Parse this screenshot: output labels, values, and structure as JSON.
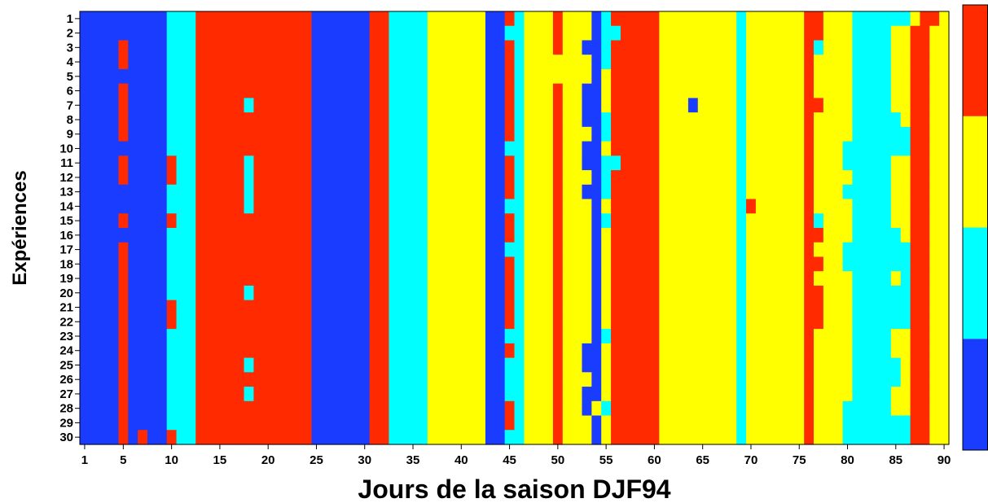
{
  "chart_data": {
    "type": "heatmap",
    "xlabel": "Jours de la saison DJF94",
    "ylabel": "Expériences",
    "x_ticks": [
      1,
      5,
      10,
      15,
      20,
      25,
      30,
      35,
      40,
      45,
      50,
      55,
      60,
      65,
      70,
      75,
      80,
      85,
      90
    ],
    "y_ticks": [
      1,
      2,
      3,
      4,
      5,
      6,
      7,
      8,
      9,
      10,
      11,
      12,
      13,
      14,
      15,
      16,
      17,
      18,
      19,
      20,
      21,
      22,
      23,
      24,
      25,
      26,
      27,
      28,
      29,
      30
    ],
    "xlim": [
      1,
      90
    ],
    "ylim": [
      1,
      30
    ],
    "colors": {
      "1": "#1a3cff",
      "2": "#00ffff",
      "3": "#ffff00",
      "4": "#ff2a00"
    },
    "colorbar_order_bottom_to_top": [
      1,
      2,
      3,
      4
    ],
    "base_column_classes": [
      1,
      1,
      1,
      1,
      1,
      1,
      1,
      1,
      1,
      2,
      2,
      2,
      4,
      4,
      4,
      4,
      4,
      4,
      4,
      4,
      4,
      4,
      4,
      4,
      1,
      1,
      1,
      1,
      1,
      1,
      4,
      4,
      2,
      2,
      2,
      2,
      3,
      3,
      3,
      3,
      3,
      3,
      1,
      1,
      4,
      2,
      3,
      3,
      3,
      4,
      3,
      3,
      3,
      1,
      2,
      4,
      4,
      4,
      4,
      4,
      3,
      3,
      3,
      3,
      3,
      3,
      3,
      3,
      2,
      3,
      3,
      3,
      3,
      3,
      3,
      4,
      4,
      3,
      3,
      2,
      2,
      2,
      2,
      2,
      2,
      2,
      4,
      4,
      3,
      3
    ],
    "variations": [
      {
        "day": 5,
        "class": 4,
        "experiences": [
          3,
          4,
          6,
          7,
          8,
          9,
          11,
          12,
          15,
          17,
          18,
          19,
          20,
          21,
          22,
          23,
          24,
          25,
          26,
          27,
          28,
          29,
          30
        ]
      },
      {
        "day": 7,
        "class": 4,
        "experiences": [
          30
        ]
      },
      {
        "day": 10,
        "class": 4,
        "experiences": [
          11,
          12,
          15,
          21,
          22,
          30
        ]
      },
      {
        "day": 18,
        "class": 2,
        "experiences": [
          7,
          11,
          12,
          13,
          14,
          20,
          25,
          27
        ]
      },
      {
        "day": 45,
        "class": 2,
        "experiences": [
          2,
          10,
          14,
          17,
          23,
          25,
          26,
          27,
          30
        ]
      },
      {
        "day": 46,
        "class": 2,
        "experiences": [
          1,
          7,
          8,
          12,
          13,
          14,
          16,
          17,
          18,
          22,
          23,
          24,
          26,
          28
        ]
      },
      {
        "day": 50,
        "class": 3,
        "experiences": [
          4,
          5
        ]
      },
      {
        "day": 53,
        "class": 1,
        "experiences": [
          3,
          6,
          7,
          8,
          10,
          11,
          13,
          24,
          25,
          27,
          28
        ]
      },
      {
        "day": 54,
        "class": 3,
        "experiences": [
          28
        ]
      },
      {
        "day": 54,
        "class": 1,
        "experiences": [
          4,
          5
        ]
      },
      {
        "day": 55,
        "class": 3,
        "experiences": [
          5,
          6,
          7,
          10,
          14,
          16,
          17,
          18,
          19,
          20,
          21,
          22,
          24,
          25,
          26,
          27,
          29,
          30
        ]
      },
      {
        "day": 55,
        "class": 2,
        "experiences": [
          1,
          2,
          8,
          9,
          11,
          13,
          23,
          28
        ]
      },
      {
        "day": 56,
        "class": 2,
        "experiences": [
          2,
          11
        ]
      },
      {
        "day": 64,
        "class": 1,
        "experiences": [
          7
        ]
      },
      {
        "day": 70,
        "class": 4,
        "experiences": [
          14
        ]
      },
      {
        "day": 77,
        "class": 3,
        "experiences": [
          4,
          5,
          6,
          8,
          9,
          10,
          11,
          12,
          13,
          14,
          17,
          19,
          23,
          24,
          25,
          26,
          27,
          28,
          29,
          30
        ]
      },
      {
        "day": 77,
        "class": 2,
        "experiences": [
          3,
          15
        ]
      },
      {
        "day": 79,
        "class": 3,
        "experiences": [
          19,
          20,
          21,
          22,
          23,
          24,
          25,
          26
        ]
      },
      {
        "day": 80,
        "class": 3,
        "experiences": [
          1,
          2,
          3,
          4,
          5,
          6,
          7,
          8,
          9,
          12,
          14,
          15,
          16,
          19,
          20,
          21,
          22,
          23,
          24,
          25,
          26,
          27
        ]
      },
      {
        "day": 85,
        "class": 3,
        "experiences": [
          2,
          3,
          4,
          5,
          6,
          7,
          11,
          12,
          13,
          14,
          15,
          19,
          23,
          24,
          27,
          28
        ]
      },
      {
        "day": 86,
        "class": 3,
        "experiences": [
          2,
          3,
          4,
          5,
          6,
          7,
          8,
          11,
          12,
          13,
          14,
          15,
          16,
          23,
          24,
          25,
          26,
          27,
          28
        ]
      },
      {
        "day": 87,
        "class": 3,
        "experiences": [
          1
        ]
      },
      {
        "day": 89,
        "class": 4,
        "experiences": [
          1
        ]
      }
    ]
  }
}
